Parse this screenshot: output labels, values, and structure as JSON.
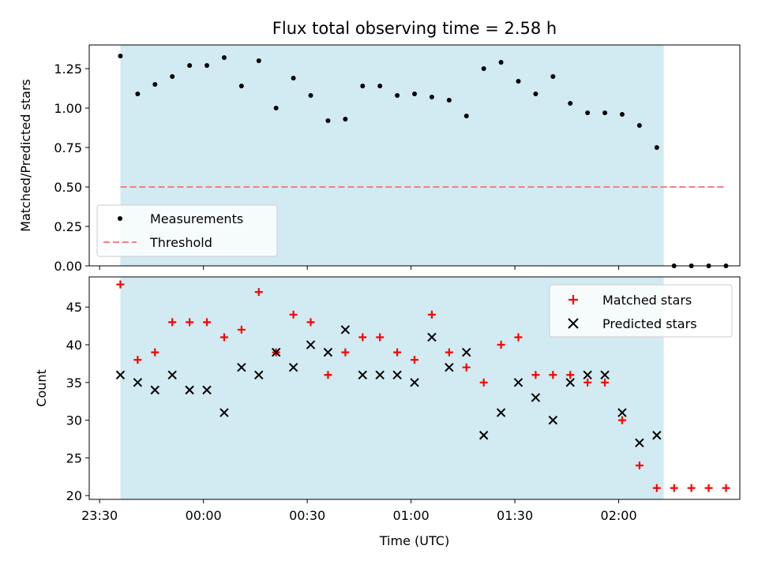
{
  "chart_data": [
    {
      "type": "scatter",
      "title": "Flux total observing time = 2.58 h",
      "xlabel": "",
      "ylabel": "Matched/Predicted stars",
      "ylim": [
        0,
        1.4
      ],
      "yticks": [
        "0.00",
        "0.25",
        "0.50",
        "0.75",
        "1.00",
        "1.25"
      ],
      "shaded_span_minutes": [
        -24,
        133
      ],
      "series": [
        {
          "name": "Measurements",
          "marker": "dot",
          "color": "#000000",
          "x_minutes": [
            -24,
            -19,
            -14,
            -9,
            -4,
            1,
            6,
            11,
            16,
            21,
            26,
            31,
            36,
            41,
            46,
            51,
            56,
            61,
            66,
            71,
            76,
            81,
            86,
            91,
            96,
            101,
            106,
            111,
            116,
            121,
            126,
            131,
            136,
            141,
            146,
            151
          ],
          "y": [
            1.33,
            1.09,
            1.15,
            1.2,
            1.27,
            1.27,
            1.32,
            1.14,
            1.3,
            1.0,
            1.19,
            1.08,
            0.92,
            0.93,
            1.14,
            1.14,
            1.08,
            1.09,
            1.07,
            1.05,
            0.95,
            1.25,
            1.29,
            1.17,
            1.09,
            1.2,
            1.03,
            0.97,
            0.97,
            0.96,
            0.89,
            0.75,
            0,
            0,
            0,
            0
          ]
        },
        {
          "name": "Threshold",
          "style": "dashed",
          "color": "#f08080",
          "x_minutes": [
            -24,
            151
          ],
          "y": [
            0.5,
            0.5
          ]
        }
      ],
      "legend": "lower-left"
    },
    {
      "type": "scatter",
      "xlabel": "Time (UTC)",
      "ylabel": "Count",
      "ylim": [
        19.5,
        49
      ],
      "yticks": [
        "20",
        "25",
        "30",
        "35",
        "40",
        "45"
      ],
      "xticks": [
        "23:30",
        "00:00",
        "00:30",
        "01:00",
        "01:30",
        "02:00"
      ],
      "xticks_minutes": [
        -30,
        0,
        30,
        60,
        90,
        120
      ],
      "shaded_span_minutes": [
        -24,
        133
      ],
      "series": [
        {
          "name": "Matched stars",
          "marker": "plus",
          "color": "#ff0000",
          "x_minutes": [
            -24,
            -19,
            -14,
            -9,
            -4,
            1,
            6,
            11,
            16,
            21,
            26,
            31,
            36,
            41,
            46,
            51,
            56,
            61,
            66,
            71,
            76,
            81,
            86,
            91,
            96,
            101,
            106,
            111,
            116,
            121,
            126,
            131,
            136,
            141,
            146,
            151
          ],
          "y": [
            48,
            38,
            39,
            43,
            43,
            43,
            41,
            42,
            47,
            39,
            44,
            43,
            36,
            39,
            41,
            41,
            39,
            38,
            44,
            39,
            37,
            35,
            40,
            41,
            36,
            36,
            36,
            35,
            35,
            30,
            24,
            21,
            21,
            21,
            21,
            21
          ]
        },
        {
          "name": "Predicted stars",
          "marker": "x",
          "color": "#000000",
          "x_minutes": [
            -24,
            -19,
            -14,
            -9,
            -4,
            1,
            6,
            11,
            16,
            21,
            26,
            31,
            36,
            41,
            46,
            51,
            56,
            61,
            66,
            71,
            76,
            81,
            86,
            91,
            96,
            101,
            106,
            111,
            116,
            121,
            126,
            131
          ],
          "y": [
            36,
            35,
            34,
            36,
            34,
            34,
            31,
            37,
            36,
            39,
            37,
            40,
            39,
            42,
            36,
            36,
            36,
            35,
            41,
            37,
            39,
            28,
            31,
            35,
            33,
            30,
            35,
            36,
            36,
            31,
            27,
            28
          ]
        }
      ],
      "legend": "upper-right"
    }
  ],
  "colors": {
    "span": "#add8e6",
    "span_opacity": "0.55"
  }
}
